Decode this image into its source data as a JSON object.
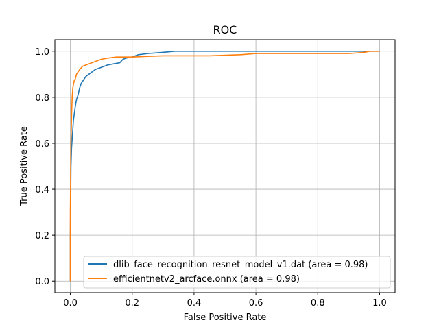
{
  "chart_data": {
    "type": "line",
    "title": "ROC",
    "xlabel": "False Positive Rate",
    "ylabel": "True Positive Rate",
    "xlim": [
      -0.05,
      1.05
    ],
    "ylim": [
      -0.05,
      1.05
    ],
    "xticks": [
      0.0,
      0.2,
      0.4,
      0.6,
      0.8,
      1.0
    ],
    "yticks": [
      0.0,
      0.2,
      0.4,
      0.6,
      0.8,
      1.0
    ],
    "xtick_labels": [
      "0.0",
      "0.2",
      "0.4",
      "0.6",
      "0.8",
      "1.0"
    ],
    "ytick_labels": [
      "0.0",
      "0.2",
      "0.4",
      "0.6",
      "0.8",
      "1.0"
    ],
    "grid": true,
    "legend_position": "lower-right",
    "series": [
      {
        "name": "dlib_face_recognition_resnet_model_v1.dat (area = 0.98)",
        "color": "#1f77b4",
        "x": [
          0.0,
          0.0,
          0.002,
          0.004,
          0.006,
          0.008,
          0.01,
          0.013,
          0.016,
          0.02,
          0.025,
          0.03,
          0.035,
          0.04,
          0.05,
          0.06,
          0.07,
          0.08,
          0.09,
          0.1,
          0.11,
          0.12,
          0.14,
          0.16,
          0.17,
          0.18,
          0.2,
          0.22,
          0.25,
          0.3,
          0.34,
          0.5,
          0.7,
          0.9,
          1.0
        ],
        "y": [
          0.0,
          0.2,
          0.5,
          0.58,
          0.62,
          0.66,
          0.7,
          0.73,
          0.76,
          0.79,
          0.81,
          0.84,
          0.86,
          0.87,
          0.89,
          0.9,
          0.91,
          0.92,
          0.925,
          0.93,
          0.935,
          0.94,
          0.945,
          0.95,
          0.965,
          0.97,
          0.975,
          0.985,
          0.99,
          0.995,
          1.0,
          1.0,
          1.0,
          1.0,
          1.0
        ]
      },
      {
        "name": "efficientnetv2_arcface.onnx (area = 0.98)",
        "color": "#ff7f0e",
        "x": [
          0.0,
          0.0,
          0.002,
          0.004,
          0.006,
          0.008,
          0.012,
          0.016,
          0.02,
          0.03,
          0.04,
          0.05,
          0.06,
          0.07,
          0.08,
          0.1,
          0.12,
          0.15,
          0.2,
          0.25,
          0.3,
          0.45,
          0.55,
          0.6,
          0.7,
          0.8,
          0.9,
          0.95,
          0.97,
          1.0
        ],
        "y": [
          0.0,
          0.3,
          0.6,
          0.72,
          0.8,
          0.84,
          0.87,
          0.88,
          0.9,
          0.92,
          0.935,
          0.94,
          0.945,
          0.95,
          0.955,
          0.965,
          0.97,
          0.975,
          0.975,
          0.978,
          0.98,
          0.98,
          0.985,
          0.99,
          0.99,
          0.99,
          0.99,
          0.995,
          1.0,
          1.0
        ]
      }
    ]
  }
}
